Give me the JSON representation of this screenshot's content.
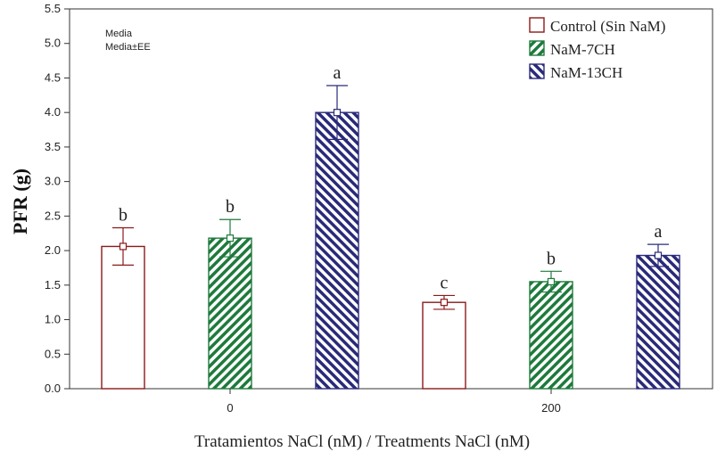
{
  "chart_data": {
    "type": "bar",
    "title": "",
    "xlabel": "Tratamientos NaCl (nM) / Treatments NaCl (nM)",
    "ylabel": "PFR (g)",
    "ylim": [
      0,
      5.5
    ],
    "yticks": [
      "0.0",
      "0.5",
      "1.0",
      "1.5",
      "2.0",
      "2.5",
      "3.0",
      "3.5",
      "4.0",
      "4.5",
      "5.0",
      "5.5"
    ],
    "categories": [
      "0",
      "200"
    ],
    "legend_position": "top-right",
    "note_lines": [
      "Media",
      "Media±EE"
    ],
    "series": [
      {
        "name": "Control (Sin NaM)",
        "color": "#8b1a1a",
        "pattern": "none",
        "values": [
          2.06,
          1.25
        ],
        "errors": [
          0.27,
          0.1
        ],
        "letters": [
          "b",
          "c"
        ]
      },
      {
        "name": "NaM-7CH",
        "color": "#1e7a3c",
        "pattern": "stripes",
        "values": [
          2.18,
          1.55
        ],
        "errors": [
          0.27,
          0.15
        ],
        "letters": [
          "b",
          "b"
        ]
      },
      {
        "name": "NaM-13CH",
        "color": "#2a2a7a",
        "pattern": "stripes",
        "values": [
          4.0,
          1.93
        ],
        "errors": [
          0.39,
          0.16
        ],
        "letters": [
          "a",
          "a"
        ]
      }
    ]
  }
}
